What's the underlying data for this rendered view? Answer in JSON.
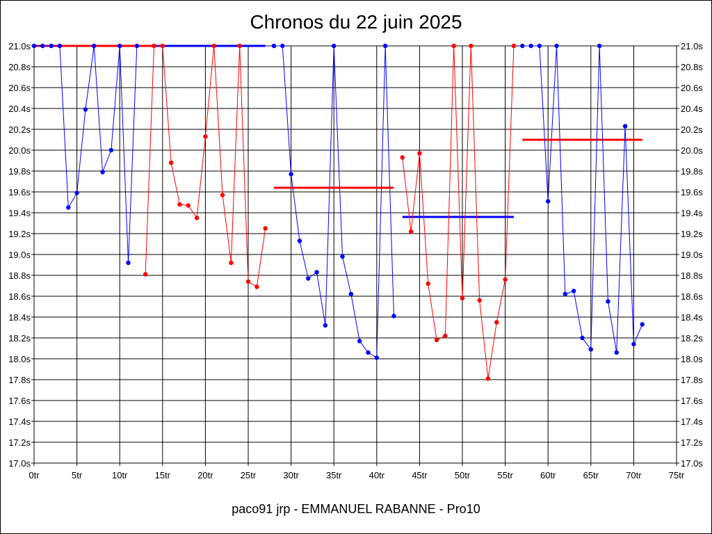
{
  "chart_data": {
    "type": "line",
    "title": "Chronos du 22 juin 2025",
    "caption": "paco91 jrp - EMMANUEL RABANNE - Pro10",
    "xlim": [
      0,
      75
    ],
    "ylim": [
      17.0,
      21.0
    ],
    "x_tick_values": [
      0,
      5,
      10,
      15,
      20,
      25,
      30,
      35,
      40,
      45,
      50,
      55,
      60,
      65,
      70,
      75
    ],
    "x_tick_labels": [
      "0tr",
      "5tr",
      "10tr",
      "15tr",
      "20tr",
      "25tr",
      "30tr",
      "35tr",
      "40tr",
      "45tr",
      "50tr",
      "55tr",
      "60tr",
      "65tr",
      "70tr",
      "75tr"
    ],
    "y_tick_values": [
      17.0,
      17.2,
      17.4,
      17.6,
      17.8,
      18.0,
      18.2,
      18.4,
      18.6,
      18.8,
      19.0,
      19.2,
      19.4,
      19.6,
      19.8,
      20.0,
      20.2,
      20.4,
      20.6,
      20.8,
      21.0
    ],
    "y_tick_labels": [
      "17.0s",
      "17.2s",
      "17.4s",
      "17.6s",
      "17.8s",
      "18.0s",
      "18.2s",
      "18.4s",
      "18.6s",
      "18.8s",
      "19.0s",
      "19.2s",
      "19.4s",
      "19.6s",
      "19.8s",
      "20.0s",
      "20.2s",
      "20.4s",
      "20.6s",
      "20.8s",
      "21.0s"
    ],
    "grid": true,
    "colors": {
      "blue": "#0000ff",
      "red": "#ff0000"
    },
    "series": [
      {
        "color": "#0000ff",
        "x": [
          0,
          1,
          2,
          3,
          4,
          5,
          6,
          7,
          8,
          9,
          10,
          11,
          12
        ],
        "y": [
          21.0,
          21.0,
          21.0,
          21.0,
          19.45,
          19.59,
          20.39,
          21.0,
          19.79,
          20.0,
          21.0,
          18.92,
          21.0
        ]
      },
      {
        "color": "#ff0000",
        "x": [
          13,
          14,
          15,
          16,
          17,
          18,
          19,
          20,
          21,
          22,
          23,
          24,
          25,
          26,
          27
        ],
        "y": [
          18.81,
          21.0,
          21.0,
          19.88,
          19.48,
          19.47,
          19.35,
          20.13,
          21.0,
          19.57,
          18.92,
          21.0,
          18.74,
          18.69,
          19.25
        ]
      },
      {
        "color": "#0000ff",
        "x": [
          28,
          29,
          30,
          31,
          32,
          33,
          34,
          35,
          36,
          37,
          38,
          39,
          40,
          41,
          42
        ],
        "y": [
          21.0,
          21.0,
          19.77,
          19.13,
          18.77,
          18.83,
          18.32,
          21.0,
          18.98,
          18.62,
          18.17,
          18.06,
          18.01,
          21.0,
          18.41
        ]
      },
      {
        "color": "#ff0000",
        "x": [
          43,
          44,
          45,
          46,
          47,
          48,
          49,
          50,
          51,
          52,
          53,
          54,
          55,
          56
        ],
        "y": [
          19.93,
          19.22,
          19.97,
          18.72,
          18.18,
          18.22,
          21.0,
          18.58,
          21.0,
          18.56,
          17.81,
          18.35,
          18.76,
          21.0
        ]
      },
      {
        "color": "#0000ff",
        "x": [
          57,
          58,
          59,
          60,
          61,
          62,
          63,
          64,
          65,
          66,
          67,
          68,
          69,
          70,
          71
        ],
        "y": [
          21.0,
          21.0,
          21.0,
          19.51,
          21.0,
          18.62,
          18.65,
          18.2,
          18.09,
          21.0,
          18.55,
          18.06,
          20.23,
          18.14,
          18.33
        ]
      }
    ],
    "averages": [
      {
        "color": "#ff0000",
        "x": [
          0,
          27
        ],
        "y": 21.0
      },
      {
        "color": "#0000ff",
        "x": [
          14,
          27
        ],
        "y": 21.0
      },
      {
        "color": "#ff0000",
        "x": [
          28,
          42
        ],
        "y": 19.64
      },
      {
        "color": "#0000ff",
        "x": [
          43,
          56
        ],
        "y": 19.36
      },
      {
        "color": "#ff0000",
        "x": [
          57,
          71
        ],
        "y": 20.1
      }
    ]
  }
}
